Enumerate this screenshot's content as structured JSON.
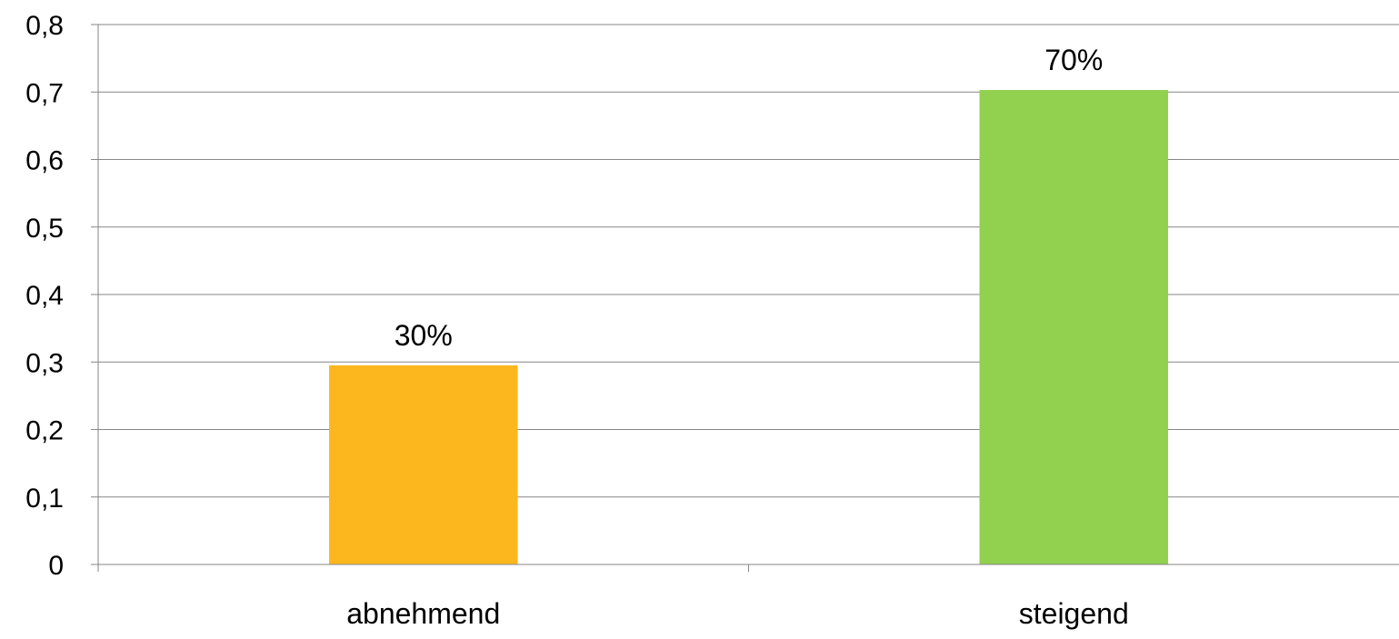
{
  "chart_data": {
    "type": "bar",
    "categories": [
      "abnehmend",
      "steigend"
    ],
    "values": [
      0.295,
      0.703
    ],
    "data_labels": [
      "30%",
      "70%"
    ],
    "bar_colors": [
      "#FDB71E",
      "#92D050"
    ],
    "ylim": [
      0,
      0.8
    ],
    "yticks": [
      {
        "value": 0,
        "label": "0"
      },
      {
        "value": 0.1,
        "label": "0,1"
      },
      {
        "value": 0.2,
        "label": "0,2"
      },
      {
        "value": 0.3,
        "label": "0,3"
      },
      {
        "value": 0.4,
        "label": "0,4"
      },
      {
        "value": 0.5,
        "label": "0,5"
      },
      {
        "value": 0.6,
        "label": "0,6"
      },
      {
        "value": 0.7,
        "label": "0,7"
      },
      {
        "value": 0.8,
        "label": "0,8"
      }
    ],
    "grid": true,
    "gridline_color": "#868686",
    "legend": "none"
  }
}
